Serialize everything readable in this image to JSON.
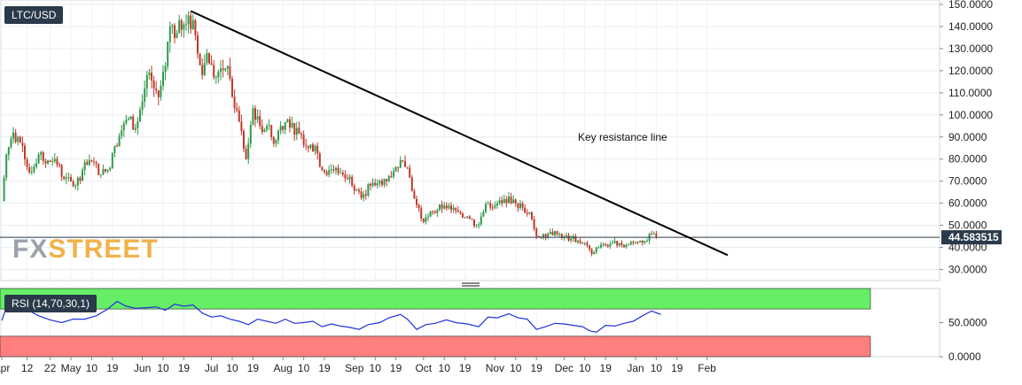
{
  "header": {
    "symbol": "LTC/USD"
  },
  "watermark": {
    "part1": "FX",
    "part2": "STREET"
  },
  "colors": {
    "up": "#2e9a4a",
    "down": "#c0392b",
    "trendline": "#000000",
    "rsi": "#2233dd",
    "overbought_zone": "#66ee66",
    "oversold_zone": "#ff7f7f",
    "price_line": "#2b3a4a"
  },
  "chart_data": [
    {
      "type": "candlestick",
      "symbol": "LTC/USD",
      "ylim": [
        25,
        152
      ],
      "yticks": [
        "150.0000",
        "140.0000",
        "130.0000",
        "120.0000",
        "110.0000",
        "100.0000",
        "90.0000",
        "80.0000",
        "70.0000",
        "60.0000",
        "50.0000",
        "40.0000",
        "30.0000"
      ],
      "current_price": "44.583515",
      "annotation": "Key resistance line",
      "trendline": [
        {
          "date": "2018-06-22",
          "value": 147
        },
        {
          "date": "2019-02-10",
          "value": 36.5
        }
      ],
      "close_series": [
        [
          "2018-04-01",
          61
        ],
        [
          "2018-04-03",
          82
        ],
        [
          "2018-04-06",
          92
        ],
        [
          "2018-04-10",
          86
        ],
        [
          "2018-04-13",
          74
        ],
        [
          "2018-04-17",
          82
        ],
        [
          "2018-04-20",
          78
        ],
        [
          "2018-04-24",
          80
        ],
        [
          "2018-04-28",
          71
        ],
        [
          "2018-05-03",
          68
        ],
        [
          "2018-05-06",
          75
        ],
        [
          "2018-05-10",
          79
        ],
        [
          "2018-05-14",
          73
        ],
        [
          "2018-05-18",
          76
        ],
        [
          "2018-05-20",
          86
        ],
        [
          "2018-05-23",
          93
        ],
        [
          "2018-05-26",
          98
        ],
        [
          "2018-05-29",
          94
        ],
        [
          "2018-06-01",
          106
        ],
        [
          "2018-06-03",
          118
        ],
        [
          "2018-06-06",
          112
        ],
        [
          "2018-06-08",
          108
        ],
        [
          "2018-06-11",
          122
        ],
        [
          "2018-06-13",
          140
        ],
        [
          "2018-06-16",
          137
        ],
        [
          "2018-06-19",
          141
        ],
        [
          "2018-06-21",
          145
        ],
        [
          "2018-06-24",
          136
        ],
        [
          "2018-06-27",
          118
        ],
        [
          "2018-06-29",
          128
        ],
        [
          "2018-07-02",
          117
        ],
        [
          "2018-07-05",
          121
        ],
        [
          "2018-07-08",
          122
        ],
        [
          "2018-07-11",
          103
        ],
        [
          "2018-07-13",
          97
        ],
        [
          "2018-07-16",
          80
        ],
        [
          "2018-07-19",
          103
        ],
        [
          "2018-07-22",
          95
        ],
        [
          "2018-07-25",
          95
        ],
        [
          "2018-07-28",
          87
        ],
        [
          "2018-07-31",
          95
        ],
        [
          "2018-08-03",
          98
        ],
        [
          "2018-08-06",
          91
        ],
        [
          "2018-08-09",
          91
        ],
        [
          "2018-08-12",
          85
        ],
        [
          "2018-08-15",
          86
        ],
        [
          "2018-08-18",
          75
        ],
        [
          "2018-08-21",
          75
        ],
        [
          "2018-08-24",
          76
        ],
        [
          "2018-08-27",
          73
        ],
        [
          "2018-08-30",
          72
        ],
        [
          "2018-09-02",
          66
        ],
        [
          "2018-09-05",
          64
        ],
        [
          "2018-09-08",
          68
        ],
        [
          "2018-09-11",
          69
        ],
        [
          "2018-09-14",
          71
        ],
        [
          "2018-09-17",
          72
        ],
        [
          "2018-09-20",
          76
        ],
        [
          "2018-09-22",
          79
        ],
        [
          "2018-09-24",
          76
        ],
        [
          "2018-09-27",
          62
        ],
        [
          "2018-09-30",
          53
        ],
        [
          "2018-10-03",
          54
        ],
        [
          "2018-10-07",
          57
        ],
        [
          "2018-10-10",
          59
        ],
        [
          "2018-10-13",
          57
        ],
        [
          "2018-10-16",
          56
        ],
        [
          "2018-10-20",
          54
        ],
        [
          "2018-10-24",
          50
        ],
        [
          "2018-10-26",
          54
        ],
        [
          "2018-10-29",
          60
        ],
        [
          "2018-11-01",
          59
        ],
        [
          "2018-11-04",
          60
        ],
        [
          "2018-11-07",
          63
        ],
        [
          "2018-11-10",
          60
        ],
        [
          "2018-11-13",
          58
        ],
        [
          "2018-11-16",
          56
        ],
        [
          "2018-11-19",
          45
        ],
        [
          "2018-11-22",
          46
        ],
        [
          "2018-11-25",
          47
        ],
        [
          "2018-11-28",
          46
        ],
        [
          "2018-12-01",
          45
        ],
        [
          "2018-12-04",
          44
        ],
        [
          "2018-12-07",
          43
        ],
        [
          "2018-12-10",
          42
        ],
        [
          "2018-12-13",
          37
        ],
        [
          "2018-12-16",
          40
        ],
        [
          "2018-12-19",
          41
        ],
        [
          "2018-12-22",
          42
        ],
        [
          "2018-12-25",
          42
        ],
        [
          "2018-12-28",
          41
        ],
        [
          "2018-12-31",
          42
        ],
        [
          "2019-01-03",
          43
        ],
        [
          "2019-01-06",
          43
        ],
        [
          "2019-01-08",
          46
        ],
        [
          "2019-01-10",
          45
        ]
      ]
    },
    {
      "type": "line",
      "title": "RSI (14,70,30,1)",
      "ylim": [
        0,
        100
      ],
      "yticks": [
        "50.0000",
        "0.0000"
      ],
      "overbought": 70,
      "oversold": 30,
      "series": [
        {
          "values": [
            [
              "2018-04-01",
              53
            ],
            [
              "2018-04-04",
              82
            ],
            [
              "2018-04-08",
              75
            ],
            [
              "2018-04-12",
              69
            ],
            [
              "2018-04-17",
              60
            ],
            [
              "2018-04-22",
              54
            ],
            [
              "2018-04-27",
              50
            ],
            [
              "2018-05-02",
              55
            ],
            [
              "2018-05-07",
              55
            ],
            [
              "2018-05-12",
              60
            ],
            [
              "2018-05-17",
              70
            ],
            [
              "2018-05-21",
              81
            ],
            [
              "2018-05-25",
              74
            ],
            [
              "2018-05-29",
              71
            ],
            [
              "2018-06-03",
              72
            ],
            [
              "2018-06-07",
              73
            ],
            [
              "2018-06-11",
              68
            ],
            [
              "2018-06-15",
              77
            ],
            [
              "2018-06-19",
              74
            ],
            [
              "2018-06-23",
              76
            ],
            [
              "2018-06-27",
              64
            ],
            [
              "2018-07-01",
              58
            ],
            [
              "2018-07-05",
              60
            ],
            [
              "2018-07-09",
              55
            ],
            [
              "2018-07-13",
              52
            ],
            [
              "2018-07-17",
              47
            ],
            [
              "2018-07-21",
              55
            ],
            [
              "2018-07-25",
              52
            ],
            [
              "2018-07-29",
              49
            ],
            [
              "2018-08-02",
              55
            ],
            [
              "2018-08-06",
              49
            ],
            [
              "2018-08-10",
              50
            ],
            [
              "2018-08-14",
              52
            ],
            [
              "2018-08-18",
              44
            ],
            [
              "2018-08-22",
              48
            ],
            [
              "2018-08-26",
              45
            ],
            [
              "2018-08-30",
              43
            ],
            [
              "2018-09-03",
              40
            ],
            [
              "2018-09-07",
              47
            ],
            [
              "2018-09-12",
              50
            ],
            [
              "2018-09-16",
              57
            ],
            [
              "2018-09-21",
              62
            ],
            [
              "2018-09-24",
              55
            ],
            [
              "2018-09-28",
              40
            ],
            [
              "2018-10-02",
              47
            ],
            [
              "2018-10-06",
              49
            ],
            [
              "2018-10-11",
              54
            ],
            [
              "2018-10-15",
              50
            ],
            [
              "2018-10-20",
              48
            ],
            [
              "2018-10-25",
              44
            ],
            [
              "2018-10-29",
              58
            ],
            [
              "2018-11-02",
              57
            ],
            [
              "2018-11-07",
              63
            ],
            [
              "2018-11-11",
              57
            ],
            [
              "2018-11-15",
              55
            ],
            [
              "2018-11-19",
              40
            ],
            [
              "2018-11-23",
              44
            ],
            [
              "2018-11-27",
              49
            ],
            [
              "2018-12-01",
              48
            ],
            [
              "2018-12-05",
              46
            ],
            [
              "2018-12-09",
              44
            ],
            [
              "2018-12-12",
              38
            ],
            [
              "2018-12-15",
              36
            ],
            [
              "2018-12-19",
              46
            ],
            [
              "2018-12-23",
              45
            ],
            [
              "2018-12-27",
              49
            ],
            [
              "2018-12-31",
              52
            ],
            [
              "2019-01-04",
              60
            ],
            [
              "2019-01-08",
              67
            ],
            [
              "2019-01-12",
              62
            ]
          ]
        }
      ]
    }
  ],
  "x_axis": {
    "labels": [
      [
        "2018-04-01",
        "Apr"
      ],
      [
        "2018-04-12",
        "12"
      ],
      [
        "2018-04-22",
        "22"
      ],
      [
        "2018-05-01",
        "May"
      ],
      [
        "2018-05-10",
        "10"
      ],
      [
        "2018-05-19",
        "19"
      ],
      [
        "2018-06-01",
        "Jun"
      ],
      [
        "2018-06-10",
        "10"
      ],
      [
        "2018-06-19",
        "19"
      ],
      [
        "2018-07-01",
        "Jul"
      ],
      [
        "2018-07-10",
        "10"
      ],
      [
        "2018-07-19",
        "19"
      ],
      [
        "2018-08-01",
        "Aug"
      ],
      [
        "2018-08-10",
        "10"
      ],
      [
        "2018-08-19",
        "19"
      ],
      [
        "2018-09-01",
        "Sep"
      ],
      [
        "2018-09-10",
        "10"
      ],
      [
        "2018-09-19",
        "19"
      ],
      [
        "2018-10-01",
        "Oct"
      ],
      [
        "2018-10-10",
        "10"
      ],
      [
        "2018-10-19",
        "19"
      ],
      [
        "2018-11-01",
        "Nov"
      ],
      [
        "2018-11-10",
        "10"
      ],
      [
        "2018-11-19",
        "19"
      ],
      [
        "2018-12-01",
        "Dec"
      ],
      [
        "2018-12-10",
        "10"
      ],
      [
        "2018-12-19",
        "19"
      ],
      [
        "2019-01-01",
        "Jan"
      ],
      [
        "2019-01-10",
        "10"
      ],
      [
        "2019-01-19",
        "19"
      ],
      [
        "2019-02-01",
        "Feb"
      ]
    ]
  }
}
